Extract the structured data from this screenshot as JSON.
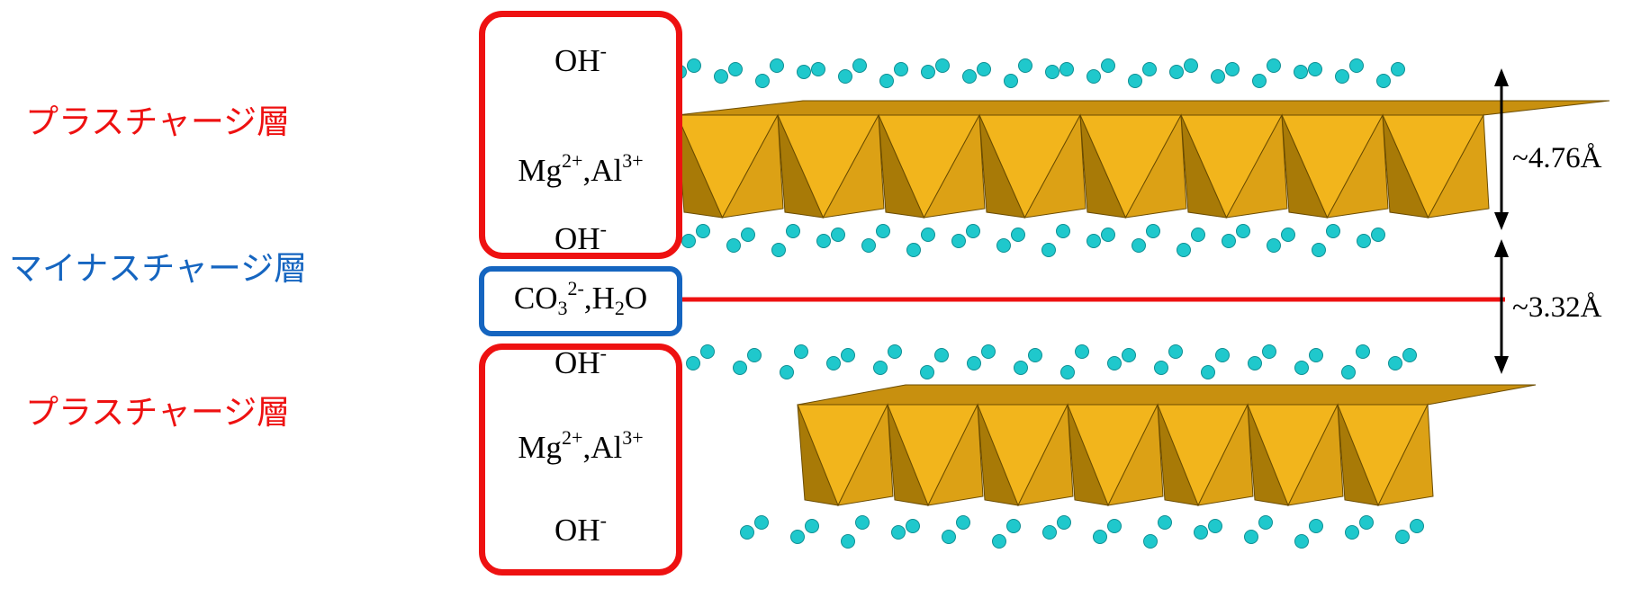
{
  "layers": {
    "upper_label": "プラスチャージ層",
    "middle_label": "マイナスチャージ層",
    "lower_label": "プラスチャージ層"
  },
  "upper_box": {
    "top": "OH",
    "top_charge": "-",
    "mid_mg": "Mg",
    "mid_mg_charge": "2+",
    "mid_sep": ",",
    "mid_al": "Al",
    "mid_al_charge": "3+",
    "bottom": "OH",
    "bottom_charge": "-"
  },
  "middle_box": {
    "co": "CO",
    "co_sub": "3",
    "co_charge": "2-",
    "sep": ",",
    "h": "H",
    "h_sub": "2",
    "o": "O"
  },
  "lower_box": {
    "top": "OH",
    "top_charge": "-",
    "mid_mg": "Mg",
    "mid_mg_charge": "2+",
    "mid_sep": ",",
    "mid_al": "Al",
    "mid_al_charge": "3+",
    "bottom": "OH",
    "bottom_charge": "-"
  },
  "dimensions": {
    "upper": "~4.76Å",
    "lower": "~3.32Å"
  },
  "colors": {
    "plus_layer": "#ee1111",
    "minus_layer": "#1565c0",
    "octahedra": "#e8ac18",
    "atoms": "#1fc8cc",
    "interlayer_line": "#ee1111"
  }
}
